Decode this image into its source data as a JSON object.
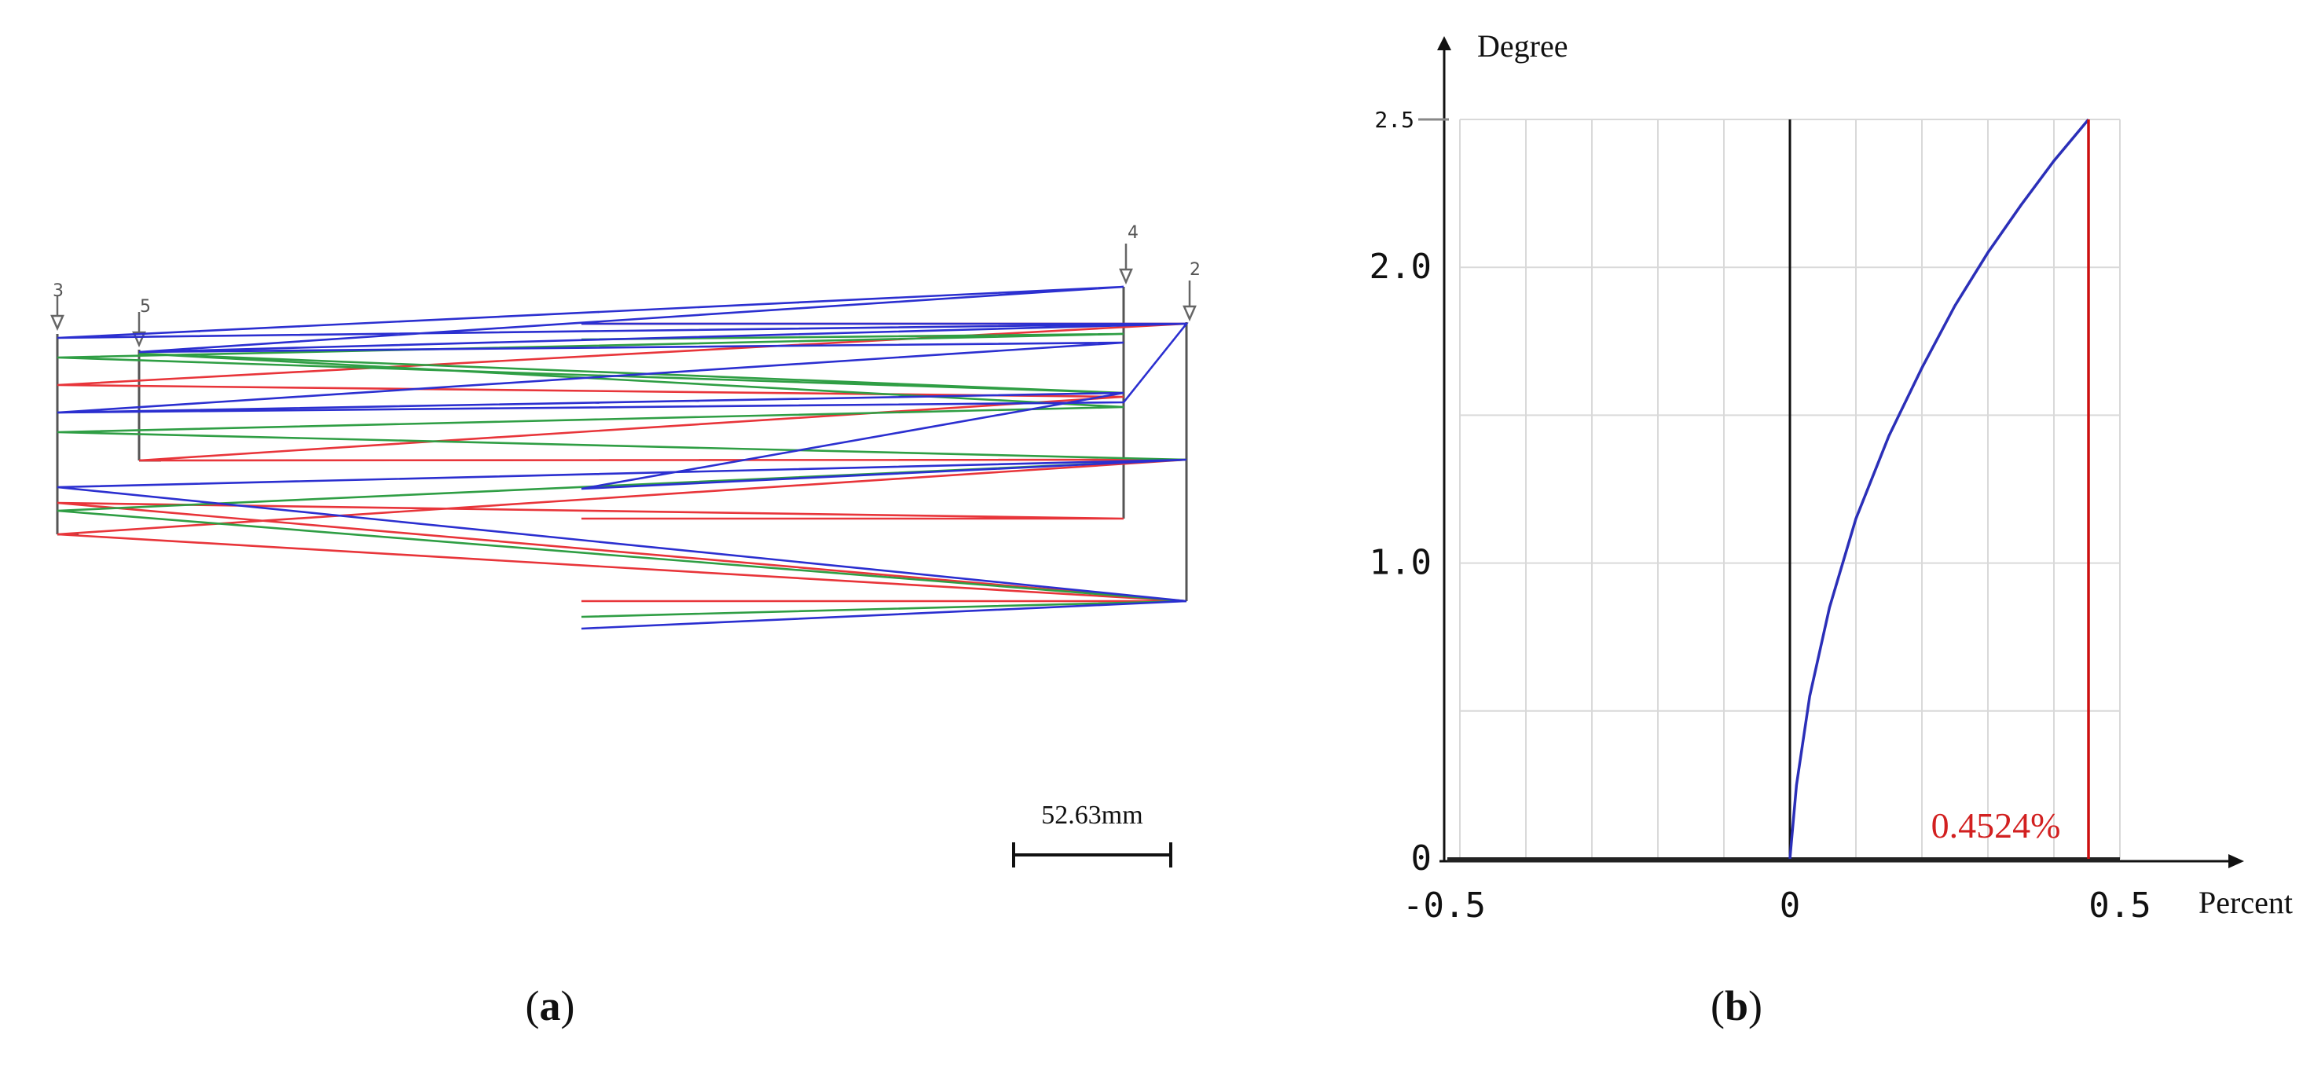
{
  "panel_a": {
    "caption_open": "(",
    "caption_letter": "a",
    "caption_close": ")",
    "surface_labels": [
      "3",
      "5",
      "4",
      "2"
    ],
    "scale_bar_label": "52.63mm",
    "ray_colors": {
      "red": "#e8353a",
      "green": "#2f9e44",
      "blue": "#2b2fd0"
    }
  },
  "panel_b": {
    "caption_open": "(",
    "caption_letter": "b",
    "caption_close": ")",
    "chart_data": {
      "type": "line",
      "ylabel": "Degree",
      "xlabel": "Percent",
      "xlim": [
        -0.5,
        0.5
      ],
      "ylim": [
        0,
        2.5
      ],
      "x_ticks": [
        "-0.5",
        "0",
        "0.5"
      ],
      "y_ticks": [
        "0",
        "1.0",
        "2.0",
        "2.5"
      ],
      "grid": true,
      "annotation": "0.4524%",
      "annotation_color": "#d22020",
      "series_color": "#2b2fb8",
      "marker_color": "#cc1010",
      "marker_x": 0.4524,
      "series": [
        {
          "x": [
            0,
            0.01,
            0.03,
            0.06,
            0.1,
            0.15,
            0.2,
            0.25,
            0.3,
            0.35,
            0.4,
            0.4524
          ],
          "y": [
            0,
            0.25,
            0.55,
            0.85,
            1.15,
            1.43,
            1.66,
            1.87,
            2.05,
            2.21,
            2.36,
            2.5
          ]
        }
      ]
    }
  }
}
